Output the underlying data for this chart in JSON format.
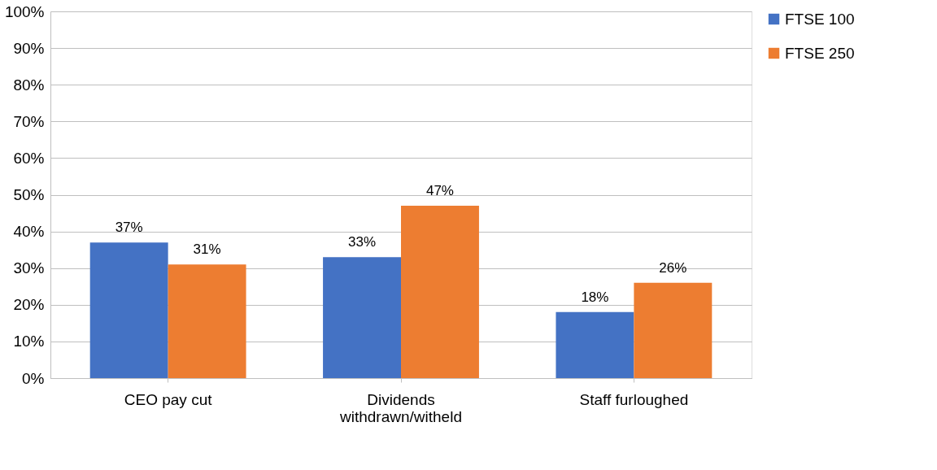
{
  "chart_data": {
    "type": "bar",
    "categories": [
      "CEO pay cut",
      "Dividends withdrawn/witheld",
      "Staff furloughed"
    ],
    "series": [
      {
        "name": "FTSE 100",
        "color": "#4472c4",
        "values": [
          37,
          33,
          18
        ],
        "value_labels": [
          "37%",
          "33%",
          "18%"
        ]
      },
      {
        "name": "FTSE 250",
        "color": "#ed7d31",
        "values": [
          31,
          47,
          26
        ],
        "value_labels": [
          "31%",
          "47%",
          "26%"
        ]
      }
    ],
    "ylim": [
      0,
      100
    ],
    "yticks": [
      {
        "value": 0,
        "label": "0%"
      },
      {
        "value": 10,
        "label": "10%"
      },
      {
        "value": 20,
        "label": "20%"
      },
      {
        "value": 30,
        "label": "30%"
      },
      {
        "value": 40,
        "label": "40%"
      },
      {
        "value": 50,
        "label": "50%"
      },
      {
        "value": 60,
        "label": "60%"
      },
      {
        "value": 70,
        "label": "70%"
      },
      {
        "value": 80,
        "label": "80%"
      },
      {
        "value": 90,
        "label": "90%"
      },
      {
        "value": 100,
        "label": "100%"
      }
    ],
    "grid": "y",
    "legend": "right"
  }
}
